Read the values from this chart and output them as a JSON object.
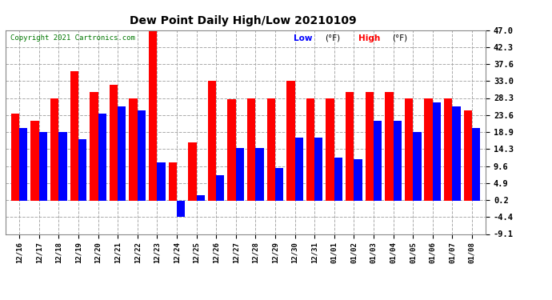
{
  "title": "Dew Point Daily High/Low 20210109",
  "copyright": "Copyright 2021 Cartronics.com",
  "legend_low": "Low",
  "legend_high": "High",
  "legend_unit": "(°F)",
  "dates": [
    "12/16",
    "12/17",
    "12/18",
    "12/19",
    "12/20",
    "12/21",
    "12/22",
    "12/23",
    "12/24",
    "12/25",
    "12/26",
    "12/27",
    "12/28",
    "12/29",
    "12/30",
    "12/31",
    "01/01",
    "01/02",
    "01/03",
    "01/04",
    "01/05",
    "01/06",
    "01/07",
    "01/08"
  ],
  "high_values": [
    24.0,
    22.0,
    28.3,
    35.6,
    30.0,
    32.0,
    28.3,
    47.0,
    10.5,
    16.0,
    33.0,
    28.0,
    28.3,
    28.3,
    33.0,
    28.3,
    28.3,
    30.0,
    30.0,
    30.0,
    28.3,
    28.3,
    28.3,
    25.0
  ],
  "low_values": [
    20.0,
    19.0,
    19.0,
    17.0,
    24.0,
    26.0,
    25.0,
    10.5,
    -4.4,
    1.5,
    7.0,
    14.5,
    14.5,
    9.0,
    17.5,
    17.5,
    12.0,
    11.5,
    22.0,
    22.0,
    19.0,
    27.0,
    26.0,
    20.0
  ],
  "high_color": "#ff0000",
  "low_color": "#0000ff",
  "background_color": "#ffffff",
  "grid_color": "#aaaaaa",
  "ymin": -9.1,
  "ymax": 47.0,
  "yticks": [
    -9.1,
    -4.4,
    0.2,
    4.9,
    9.6,
    14.3,
    18.9,
    23.6,
    28.3,
    33.0,
    37.6,
    42.3,
    47.0
  ],
  "bar_width": 0.42
}
